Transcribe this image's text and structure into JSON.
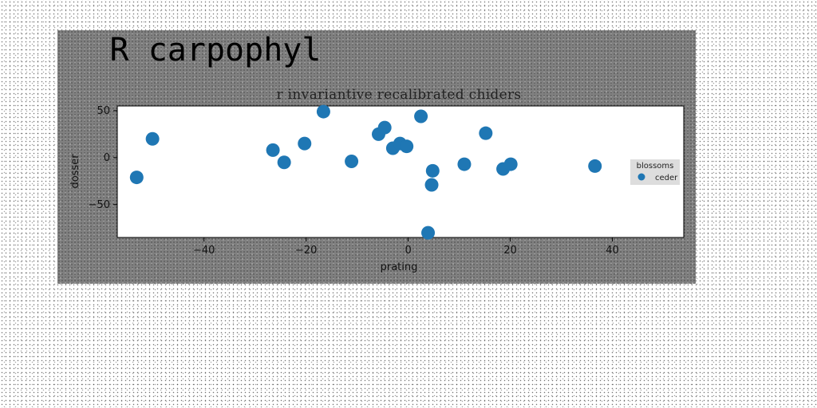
{
  "chart_data": {
    "type": "scatter",
    "title": "R carpophyl",
    "subtitle": "r invariantive recalibrated chiders",
    "xlabel": "prating",
    "ylabel": "dosser",
    "xlim": [
      -57,
      54
    ],
    "ylim": [
      -85,
      55
    ],
    "xticks": [
      -40,
      -20,
      0,
      20,
      40
    ],
    "yticks": [
      50,
      0,
      -50
    ],
    "grid": false,
    "legend": {
      "title": "blossoms",
      "placement": "right"
    },
    "colors": {
      "marker": "#1f77b4"
    },
    "series": [
      {
        "name": "ceder",
        "points": [
          {
            "x": -53.2,
            "y": -21
          },
          {
            "x": -50.1,
            "y": 20
          },
          {
            "x": -26.5,
            "y": 8
          },
          {
            "x": -24.3,
            "y": -5
          },
          {
            "x": -20.3,
            "y": 15
          },
          {
            "x": -16.6,
            "y": 49
          },
          {
            "x": -11.1,
            "y": -4
          },
          {
            "x": -5.8,
            "y": 25
          },
          {
            "x": -4.6,
            "y": 32
          },
          {
            "x": -3.0,
            "y": 10
          },
          {
            "x": -1.6,
            "y": 15
          },
          {
            "x": -0.3,
            "y": 12
          },
          {
            "x": 2.5,
            "y": 44
          },
          {
            "x": 3.9,
            "y": -80
          },
          {
            "x": 4.6,
            "y": -29
          },
          {
            "x": 4.8,
            "y": -14
          },
          {
            "x": 11.0,
            "y": -7
          },
          {
            "x": 15.2,
            "y": 26
          },
          {
            "x": 18.6,
            "y": -12
          },
          {
            "x": 20.1,
            "y": -7
          },
          {
            "x": 36.6,
            "y": -9
          }
        ]
      }
    ]
  }
}
